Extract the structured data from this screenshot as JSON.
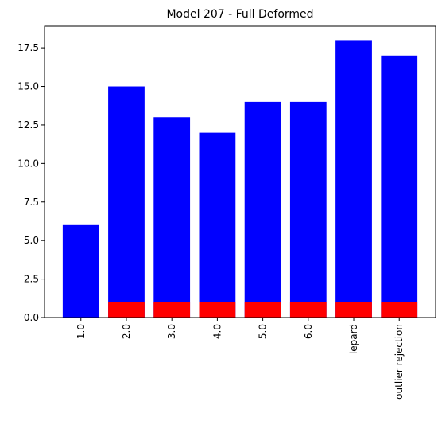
{
  "chart_data": {
    "type": "bar",
    "title": "Model 207 - Full Deformed",
    "xlabel": "",
    "ylabel": "",
    "categories": [
      "1.0",
      "2.0",
      "3.0",
      "4.0",
      "5.0",
      "6.0",
      "lepard",
      "outlier rejection"
    ],
    "series": [
      {
        "values": [
          6,
          15,
          13,
          12,
          14,
          14,
          18,
          17
        ],
        "color": "#0000ff"
      },
      {
        "values": [
          0,
          1,
          1,
          1,
          1,
          1,
          1,
          1
        ],
        "color": "#ff0000"
      }
    ],
    "ylim": [
      0,
      18.9
    ],
    "yticks": [
      "0.0",
      "2.5",
      "5.0",
      "7.5",
      "10.0",
      "12.5",
      "15.0",
      "17.5"
    ],
    "grid": false,
    "legend": "none"
  }
}
